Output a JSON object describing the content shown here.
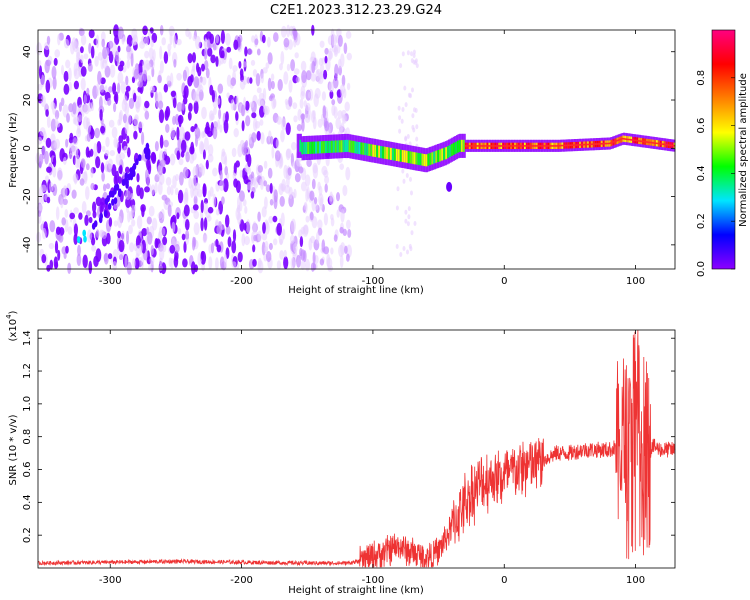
{
  "title": "C2E1.2023.312.23.29.G24",
  "chart_data": [
    {
      "type": "heatmap",
      "name": "spectrogram",
      "xlabel": "Height of straight line (km)",
      "ylabel": "Frequency (Hz)",
      "xlim": [
        -355,
        130
      ],
      "ylim": [
        -50,
        49
      ],
      "xticks": [
        -300,
        -200,
        -100,
        0,
        100
      ],
      "yticks": [
        -40,
        -20,
        0,
        20,
        40
      ],
      "colorbar": {
        "label": "Normalized spectral amplitude",
        "range": [
          0.0,
          1.0
        ],
        "ticks": [
          0.0,
          0.2,
          0.4,
          0.6,
          0.8
        ],
        "tick_labels": [
          "0.0",
          "0.2",
          "0.4",
          "0.6",
          "0.8"
        ],
        "colormap": [
          "#ffffff",
          "#e6ccff",
          "#8c00ff",
          "#0000ff",
          "#00e5ff",
          "#00ff00",
          "#ffff00",
          "#ff7f00",
          "#ff0000",
          "#ff0080"
        ]
      },
      "ridge": {
        "description_points": [
          {
            "x": -155,
            "y": 0
          },
          {
            "x": -120,
            "y": 1
          },
          {
            "x": -100,
            "y": -1
          },
          {
            "x": -80,
            "y": -3
          },
          {
            "x": -60,
            "y": -5
          },
          {
            "x": -45,
            "y": -2
          },
          {
            "x": -35,
            "y": 1
          },
          {
            "x": -10,
            "y": 1
          },
          {
            "x": 0,
            "y": 1
          },
          {
            "x": 40,
            "y": 1
          },
          {
            "x": 80,
            "y": 2
          },
          {
            "x": 90,
            "y": 4
          },
          {
            "x": 130,
            "y": 1
          }
        ],
        "chirp_start": {
          "x": -325,
          "y": -40
        },
        "chirp_end": {
          "x": -270,
          "y": 0
        }
      }
    },
    {
      "type": "line",
      "name": "snr",
      "xlabel": "Height of straight line (km)",
      "ylabel": "SNR (10 * v/v)",
      "y_multiplier_label": "(x10",
      "y_multiplier_exp": "4",
      "xlim": [
        -355,
        130
      ],
      "ylim": [
        0,
        1.45
      ],
      "xticks": [
        -300,
        -200,
        -100,
        0,
        100
      ],
      "yticks": [
        0.2,
        0.4,
        0.6,
        0.8,
        1.0,
        1.2,
        1.4
      ],
      "ytick_labels": [
        "0.2",
        "0.4",
        "0.6",
        "0.8",
        "1.0",
        "1.2",
        "1.4"
      ],
      "color": "#ee3333",
      "series": [
        {
          "x": [
            -355,
            -300,
            -250,
            -200,
            -150,
            -120,
            -110,
            -100,
            -90,
            -80,
            -70,
            -60,
            -50,
            -40,
            -30,
            -20,
            -10,
            0,
            10,
            20,
            30,
            40,
            50,
            60,
            70,
            80,
            90,
            95,
            100,
            105,
            110,
            120,
            130
          ],
          "y": [
            0.03,
            0.035,
            0.04,
            0.035,
            0.03,
            0.03,
            0.04,
            0.07,
            0.1,
            0.13,
            0.09,
            0.06,
            0.1,
            0.25,
            0.4,
            0.5,
            0.55,
            0.55,
            0.6,
            0.62,
            0.66,
            0.7,
            0.7,
            0.72,
            0.72,
            0.72,
            0.75,
            0.9,
            1.1,
            0.85,
            0.75,
            0.72,
            0.72
          ]
        }
      ]
    }
  ]
}
